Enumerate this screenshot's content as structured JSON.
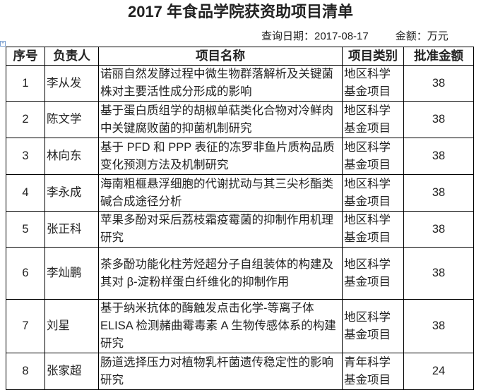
{
  "title": "2017 年食品学院获资助项目清单",
  "query_date": "查询日期：2017-08-17",
  "unit": "金额：万元",
  "table": {
    "headers": [
      "序号",
      "负责人",
      "项目名称",
      "项目类别",
      "批准金额"
    ],
    "rows": [
      {
        "no": "1",
        "person": "李从发",
        "name": "诺丽自然发酵过程中微生物群落解析及关键菌株对主要活性成分形成的影响",
        "category": "地区科学基金项目",
        "amount": "38"
      },
      {
        "no": "2",
        "person": "陈文学",
        "name": "基于蛋白质组学的胡椒单萜类化合物对冷鲜肉中关键腐败菌的抑菌机制研究",
        "category": "地区科学基金项目",
        "amount": "38"
      },
      {
        "no": "3",
        "person": "林向东",
        "name": "基于 PFD 和 PPP 表征的冻罗非鱼片质构品质变化预测方法及机制研究",
        "category": "地区科学基金项目",
        "amount": "38"
      },
      {
        "no": "4",
        "person": "李永成",
        "name": "海南粗榧悬浮细胞的代谢扰动与其三尖杉酯类碱合成途径分析",
        "category": "地区科学基金项目",
        "amount": "38"
      },
      {
        "no": "5",
        "person": "张正科",
        "name": "苹果多酚对采后荔枝霜疫霉菌的抑制作用机理研究",
        "category": "地区科学基金项目",
        "amount": "38"
      },
      {
        "no": "6",
        "person": "李灿鹏",
        "name": "茶多酚功能化柱芳烃超分子自组装体的构建及其对 β-淀粉样蛋白纤维化的抑制作用",
        "category": "地区科学基金项目",
        "amount": "38"
      },
      {
        "no": "7",
        "person": "刘星",
        "name": "基于纳米抗体的酶触发点击化学-等离子体 ELISA 检测赭曲霉毒素 A 生物传感体系的构建研究",
        "category": "地区科学基金项目",
        "amount": "38"
      },
      {
        "no": "8",
        "person": "张家超",
        "name": "肠道选择压力对植物乳杆菌遗传稳定性的影响研究",
        "category": "青年科学基金项目",
        "amount": "24"
      }
    ]
  }
}
